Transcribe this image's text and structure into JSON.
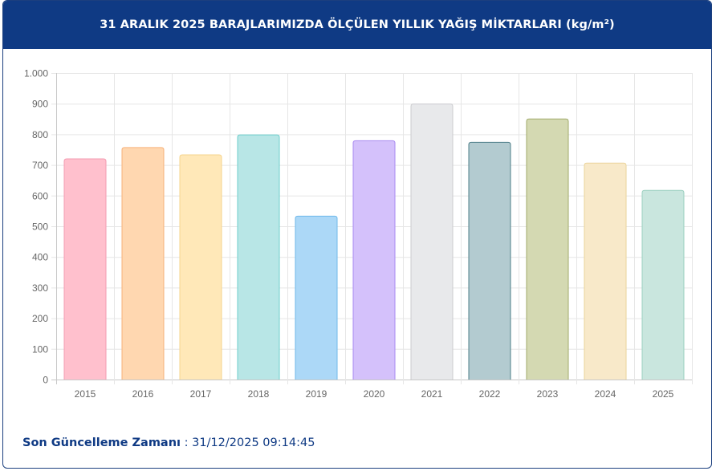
{
  "header": {
    "title": "31 ARALIK 2025 BARAJLARIMIZDA ÖLÇÜLEN YILLIK YAĞIŞ MİKTARLARI (kg/m²)"
  },
  "footer": {
    "label": "Son Güncelleme Zamanı",
    "separator": " : ",
    "value": "31/12/2025 09:14:45"
  },
  "chart_data": {
    "type": "bar",
    "title": "31 ARALIK 2025 BARAJLARIMIZDA ÖLÇÜLEN YILLIK YAĞIŞ MİKTARLARI (kg/m²)",
    "xlabel": "",
    "ylabel": "",
    "categories": [
      "2015",
      "2016",
      "2017",
      "2018",
      "2019",
      "2020",
      "2021",
      "2022",
      "2023",
      "2024",
      "2025"
    ],
    "values": [
      720,
      757,
      733,
      798,
      533,
      779,
      899,
      774,
      850,
      706,
      617
    ],
    "ylim": [
      0,
      1000
    ],
    "yticks": [
      0,
      100,
      200,
      300,
      400,
      500,
      600,
      700,
      800,
      900,
      1000
    ],
    "ytick_labels": [
      "0",
      "100",
      "200",
      "300",
      "400",
      "500",
      "600",
      "700",
      "800",
      "900",
      "1.000"
    ],
    "grid": true,
    "legend": "none",
    "fill_colors": [
      "#ffc0cd",
      "#ffd7b0",
      "#ffe8b8",
      "#b8e6e6",
      "#acd8f7",
      "#d4c1fb",
      "#e8e9eb",
      "#b3cbd0",
      "#d4d9b2",
      "#f8e9c9",
      "#c9e6de"
    ],
    "stroke_colors": [
      "#f39bb1",
      "#f6b27a",
      "#f6d48e",
      "#6ecfcc",
      "#6fb8ea",
      "#a98af0",
      "#cbcccf",
      "#4f7f89",
      "#a2ab6b",
      "#ead39a",
      "#9cd0c0"
    ]
  }
}
